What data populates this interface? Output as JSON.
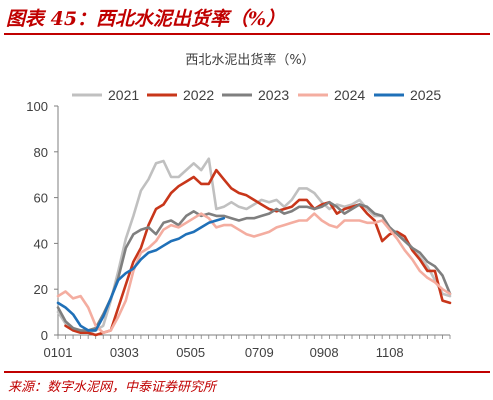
{
  "figure": {
    "title": "图表 45：西北水泥出货率（%）",
    "source": "来源：数字水泥网，中泰证券研究所"
  },
  "colors": {
    "accent": "#c00000",
    "axis": "#7f7f7f",
    "text": "#404040"
  },
  "chart_data": {
    "type": "line",
    "title": "西北水泥出货率（%）",
    "xlabel": "",
    "ylabel": "",
    "xlim": [
      0,
      52
    ],
    "ylim": [
      0,
      100
    ],
    "yticks": [
      0,
      20,
      40,
      60,
      80,
      100
    ],
    "xticks": [
      {
        "label": "0101",
        "x": 0
      },
      {
        "label": "0303",
        "x": 8.8
      },
      {
        "label": "0505",
        "x": 17.6
      },
      {
        "label": "0709",
        "x": 26.7
      },
      {
        "label": "0908",
        "x": 35.3
      },
      {
        "label": "1108",
        "x": 44
      }
    ],
    "grid": false,
    "legend": "top",
    "series": [
      {
        "name": "2021",
        "color": "#c0c0c0",
        "x": [
          0,
          1,
          2,
          3,
          4,
          5,
          6,
          7,
          8,
          9,
          10,
          11,
          12,
          13,
          14,
          15,
          16,
          17,
          18,
          19,
          20,
          21,
          22,
          23,
          24,
          25,
          26,
          27,
          28,
          29,
          30,
          31,
          32,
          33,
          34,
          35,
          36,
          37,
          38,
          39,
          40,
          41,
          42,
          43,
          44,
          45,
          46,
          47,
          48,
          49,
          50,
          51,
          52
        ],
        "y": [
          10,
          5,
          2,
          2,
          1,
          2,
          4,
          15,
          28,
          42,
          52,
          63,
          68,
          75,
          76,
          69,
          69,
          72,
          75,
          72,
          77,
          55,
          56,
          58,
          56,
          55,
          57,
          59,
          58,
          59,
          56,
          59,
          64,
          64,
          62,
          58,
          55,
          57,
          56,
          57,
          59,
          55,
          52,
          52,
          46,
          45,
          42,
          38,
          34,
          30,
          24,
          18,
          17
        ]
      },
      {
        "name": "2022",
        "color": "#c8361a",
        "x": [
          1,
          2,
          3,
          4,
          5,
          6,
          7,
          8,
          9,
          10,
          11,
          12,
          13,
          14,
          15,
          16,
          17,
          18,
          19,
          20,
          21,
          22,
          23,
          24,
          25,
          26,
          27,
          28,
          29,
          30,
          31,
          32,
          33,
          34,
          35,
          36,
          37,
          38,
          39,
          40,
          41,
          42,
          43,
          44,
          45,
          46,
          47,
          48,
          49,
          50,
          51,
          52
        ],
        "y": [
          4,
          2,
          1,
          1,
          0,
          1,
          2,
          12,
          22,
          32,
          38,
          48,
          55,
          57,
          62,
          65,
          67,
          69,
          66,
          66,
          72,
          68,
          64,
          62,
          61,
          59,
          57,
          55,
          54,
          55,
          56,
          59,
          59,
          55,
          57,
          58,
          53,
          55,
          56,
          57,
          53,
          50,
          41,
          44,
          45,
          43,
          37,
          33,
          28,
          28,
          15,
          14
        ]
      },
      {
        "name": "2023",
        "color": "#7f7f7f",
        "x": [
          0,
          1,
          2,
          3,
          4,
          5,
          6,
          7,
          8,
          9,
          10,
          11,
          12,
          13,
          14,
          15,
          16,
          17,
          18,
          19,
          20,
          21,
          22,
          23,
          24,
          25,
          26,
          27,
          28,
          29,
          30,
          31,
          32,
          33,
          34,
          35,
          36,
          37,
          38,
          39,
          40,
          41,
          42,
          43,
          44,
          45,
          46,
          47,
          48,
          49,
          50,
          51,
          52
        ],
        "y": [
          12,
          6,
          3,
          2,
          2,
          3,
          9,
          16,
          25,
          38,
          44,
          46,
          47,
          44,
          49,
          50,
          48,
          52,
          54,
          52,
          53,
          52,
          52,
          51,
          50,
          51,
          51,
          52,
          53,
          55,
          53,
          54,
          56,
          56,
          55,
          56,
          58,
          56,
          53,
          55,
          57,
          56,
          53,
          52,
          47,
          44,
          41,
          38,
          36,
          32,
          30,
          26,
          18
        ]
      },
      {
        "name": "2024",
        "color": "#f4ada0",
        "x": [
          0,
          1,
          2,
          3,
          4,
          5,
          6,
          7,
          8,
          9,
          10,
          11,
          12,
          13,
          14,
          15,
          16,
          17,
          18,
          19,
          20,
          21,
          22,
          23,
          24,
          25,
          26,
          27,
          28,
          29,
          30,
          31,
          32,
          33,
          34,
          35,
          36,
          37,
          38,
          39,
          40,
          41,
          42,
          43,
          44,
          45,
          46,
          47,
          48,
          49,
          50,
          51,
          52
        ],
        "y": [
          17,
          19,
          16,
          17,
          12,
          4,
          1,
          2,
          8,
          15,
          28,
          36,
          38,
          41,
          46,
          48,
          47,
          49,
          51,
          53,
          51,
          47,
          48,
          48,
          46,
          44,
          43,
          44,
          45,
          47,
          48,
          49,
          50,
          50,
          53,
          50,
          48,
          47,
          50,
          50,
          50,
          49,
          49,
          50,
          46,
          42,
          37,
          33,
          28,
          25,
          23,
          20,
          18
        ]
      },
      {
        "name": "2025",
        "color": "#1f70b8",
        "x": [
          0,
          1,
          2,
          3,
          4,
          5,
          6,
          7,
          8,
          9,
          10,
          11,
          12,
          13,
          14,
          15,
          16,
          17,
          18,
          19,
          20,
          21,
          22
        ],
        "y": [
          14,
          12,
          9,
          4,
          2,
          2,
          8,
          16,
          24,
          27,
          29,
          33,
          36,
          37,
          39,
          41,
          42,
          44,
          45,
          47,
          49,
          50,
          51
        ]
      }
    ]
  }
}
